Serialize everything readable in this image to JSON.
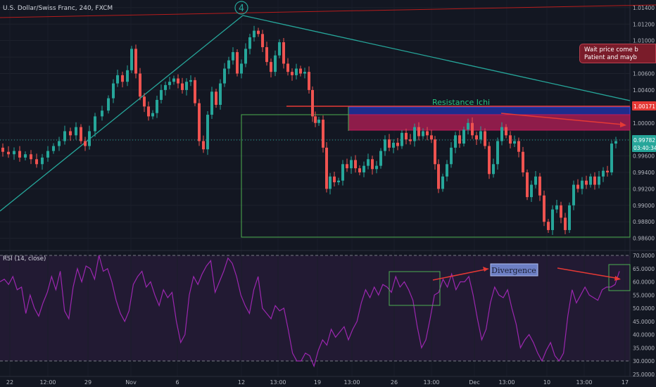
{
  "header": {
    "symbol_title": "U.S. Dollar/Swiss Franc, 240, FXCM"
  },
  "rsi_panel": {
    "label": "RSI (14, close)",
    "overbought": 70,
    "oversold": 30,
    "middle": 50
  },
  "colors": {
    "background": "#131722",
    "up_candle": "#26a69a",
    "down_candle": "#ef5350",
    "trendline": "#26a69a",
    "rsi_line": "#9c27b0",
    "rsi_band": "#2a1d3c",
    "resistance_box": "#9c1f4f",
    "blue_box": "#1e2c8c",
    "green_box": "#4caf50",
    "price_badge_red": "#e53935",
    "price_badge_teal": "#26a69a"
  },
  "annotations": {
    "wave_label": "4",
    "resistance_label": "Resistance Ichi",
    "divergence_label": "Divergence",
    "note_line1": "Wait price come b",
    "note_line2": "Patient and mayb"
  },
  "price_badges": {
    "red_level": "1.00171",
    "current_price": "0.99782",
    "countdown": "03:40:34"
  },
  "chart_data": {
    "type": "candlestick",
    "title": "U.S. Dollar/Swiss Franc, 240, FXCM",
    "y_axis": {
      "ticks": [
        "1.01400",
        "1.01200",
        "1.01000",
        "1.00800",
        "1.00600",
        "1.00400",
        "1.00200",
        "1.00000",
        "0.99800",
        "0.99600",
        "0.99400",
        "0.99200",
        "0.99000",
        "0.98800",
        "0.98600"
      ],
      "ylim": [
        0.9858,
        1.0145
      ]
    },
    "x_axis": {
      "ticks": [
        "22",
        "12:00",
        "29",
        "Nov",
        "6",
        "12",
        "13:00",
        "19",
        "13:00",
        "26",
        "13:00",
        "Dec",
        "13:00",
        "10",
        "13:00",
        "17"
      ]
    },
    "rsi_axis": {
      "ticks": [
        "70.0000",
        "65.0000",
        "60.0000",
        "55.0000",
        "50.0000",
        "45.0000",
        "40.0000",
        "35.0000",
        "30.0000",
        "25.0000"
      ],
      "ylim": [
        24.5,
        71.5
      ]
    },
    "price_path": [
      [
        0,
        0.997
      ],
      [
        8,
        0.9965
      ],
      [
        16,
        0.9962
      ],
      [
        24,
        0.9966
      ],
      [
        32,
        0.9958
      ],
      [
        40,
        0.9962
      ],
      [
        48,
        0.9956
      ],
      [
        56,
        0.995
      ],
      [
        64,
        0.9958
      ],
      [
        72,
        0.9966
      ],
      [
        80,
        0.9972
      ],
      [
        88,
        0.9978
      ],
      [
        96,
        0.999
      ],
      [
        104,
        0.9985
      ],
      [
        112,
        0.9995
      ],
      [
        118,
        0.9978
      ],
      [
        124,
        0.9972
      ],
      [
        130,
        0.999
      ],
      [
        140,
        1.0008
      ],
      [
        150,
        1.0015
      ],
      [
        158,
        1.003
      ],
      [
        164,
        1.0048
      ],
      [
        170,
        1.0058
      ],
      [
        178,
        1.005
      ],
      [
        184,
        1.0064
      ],
      [
        190,
        1.009
      ],
      [
        196,
        1.006
      ],
      [
        202,
        1.0032
      ],
      [
        208,
        1.002
      ],
      [
        214,
        1.0008
      ],
      [
        220,
        1.0012
      ],
      [
        226,
        1.0028
      ],
      [
        232,
        1.004
      ],
      [
        238,
        1.0046
      ],
      [
        244,
        1.005
      ],
      [
        250,
        1.0054
      ],
      [
        256,
        1.0048
      ],
      [
        262,
        1.004
      ],
      [
        268,
        1.005
      ],
      [
        274,
        1.0052
      ],
      [
        280,
        1.0024
      ],
      [
        286,
        0.9978
      ],
      [
        292,
        0.9968
      ],
      [
        298,
        1.001
      ],
      [
        304,
        1.0038
      ],
      [
        310,
        1.0022
      ],
      [
        316,
        1.0048
      ],
      [
        322,
        1.0066
      ],
      [
        328,
        1.0076
      ],
      [
        334,
        1.0086
      ],
      [
        340,
        1.006
      ],
      [
        346,
        1.0072
      ],
      [
        352,
        1.009
      ],
      [
        358,
        1.0104
      ],
      [
        364,
        1.0112
      ],
      [
        370,
        1.0108
      ],
      [
        376,
        1.0092
      ],
      [
        382,
        1.0074
      ],
      [
        388,
        1.0062
      ],
      [
        394,
        1.0082
      ],
      [
        400,
        1.0098
      ],
      [
        406,
        1.0072
      ],
      [
        412,
        1.0062
      ],
      [
        418,
        1.0058
      ],
      [
        424,
        1.0066
      ],
      [
        430,
        1.006
      ],
      [
        436,
        1.0062
      ],
      [
        442,
        1.004
      ],
      [
        446,
        1.0008
      ],
      [
        450,
        1.0
      ],
      [
        456,
        1.0004
      ],
      [
        462,
        0.997
      ],
      [
        466,
        0.992
      ],
      [
        472,
        0.9935
      ],
      [
        478,
        0.9928
      ],
      [
        484,
        0.993
      ],
      [
        490,
        0.995
      ],
      [
        496,
        0.9945
      ],
      [
        502,
        0.9955
      ],
      [
        508,
        0.9945
      ],
      [
        514,
        0.994
      ],
      [
        520,
        0.9948
      ],
      [
        526,
        0.9956
      ],
      [
        532,
        0.9944
      ],
      [
        538,
        0.9948
      ],
      [
        544,
        0.9966
      ],
      [
        550,
        0.998
      ],
      [
        556,
        0.997
      ],
      [
        562,
        0.9976
      ],
      [
        568,
        0.9972
      ],
      [
        574,
        0.9988
      ],
      [
        580,
        0.998
      ],
      [
        586,
        0.9978
      ],
      [
        592,
        0.9995
      ],
      [
        598,
        0.9984
      ],
      [
        604,
        0.999
      ],
      [
        610,
        0.9985
      ],
      [
        616,
        0.998
      ],
      [
        620,
        0.995
      ],
      [
        626,
        0.992
      ],
      [
        632,
        0.9935
      ],
      [
        638,
        0.995
      ],
      [
        644,
        0.997
      ],
      [
        650,
        0.9985
      ],
      [
        656,
        0.9975
      ],
      [
        662,
        0.9992
      ],
      [
        668,
        1.0
      ],
      [
        674,
        0.9985
      ],
      [
        680,
        0.998
      ],
      [
        686,
        0.999
      ],
      [
        692,
        0.9972
      ],
      [
        698,
        0.9938
      ],
      [
        704,
        0.995
      ],
      [
        710,
        0.9978
      ],
      [
        716,
        0.9995
      ],
      [
        722,
        0.9985
      ],
      [
        728,
        0.9975
      ],
      [
        734,
        0.9978
      ],
      [
        740,
        0.9965
      ],
      [
        746,
        0.994
      ],
      [
        752,
        0.991
      ],
      [
        758,
        0.9925
      ],
      [
        764,
        0.9935
      ],
      [
        770,
        0.9912
      ],
      [
        776,
        0.988
      ],
      [
        782,
        0.987
      ],
      [
        788,
        0.9895
      ],
      [
        794,
        0.99
      ],
      [
        800,
        0.9885
      ],
      [
        806,
        0.987
      ],
      [
        812,
        0.99
      ],
      [
        818,
        0.9925
      ],
      [
        824,
        0.992
      ],
      [
        830,
        0.993
      ],
      [
        836,
        0.9925
      ],
      [
        842,
        0.9935
      ],
      [
        848,
        0.9925
      ],
      [
        854,
        0.9935
      ],
      [
        860,
        0.9942
      ],
      [
        866,
        0.994
      ],
      [
        872,
        0.9975
      ],
      [
        878,
        0.9978
      ]
    ],
    "rsi_values": [
      60,
      61,
      59,
      62,
      57,
      58,
      48,
      55,
      50,
      47,
      52,
      56,
      62,
      57,
      64,
      49,
      46,
      58,
      65,
      60,
      66,
      65,
      61,
      70,
      64,
      65,
      60,
      53,
      48,
      45,
      49,
      59,
      62,
      64,
      58,
      60,
      55,
      51,
      57,
      54,
      56,
      45,
      37,
      40,
      55,
      62,
      59,
      63,
      66,
      68,
      56,
      60,
      64,
      69,
      67,
      62,
      55,
      51,
      48,
      57,
      62,
      50,
      48,
      46,
      51,
      49,
      50,
      42,
      33,
      30,
      30,
      33,
      32,
      28,
      34,
      38,
      36,
      42,
      39,
      41,
      43,
      38,
      42,
      45,
      52,
      57,
      54,
      58,
      55,
      59,
      58,
      56,
      62,
      58,
      60,
      57,
      53,
      43,
      35,
      38,
      46,
      55,
      56,
      61,
      58,
      63,
      57,
      60,
      60,
      62,
      55,
      46,
      38,
      42,
      52,
      58,
      55,
      54,
      57,
      50,
      44,
      35,
      38,
      40,
      37,
      33,
      30,
      34,
      37,
      32,
      30,
      33,
      47,
      57,
      52,
      55,
      58,
      55,
      54,
      53,
      57,
      58,
      58,
      59,
      64
    ]
  }
}
